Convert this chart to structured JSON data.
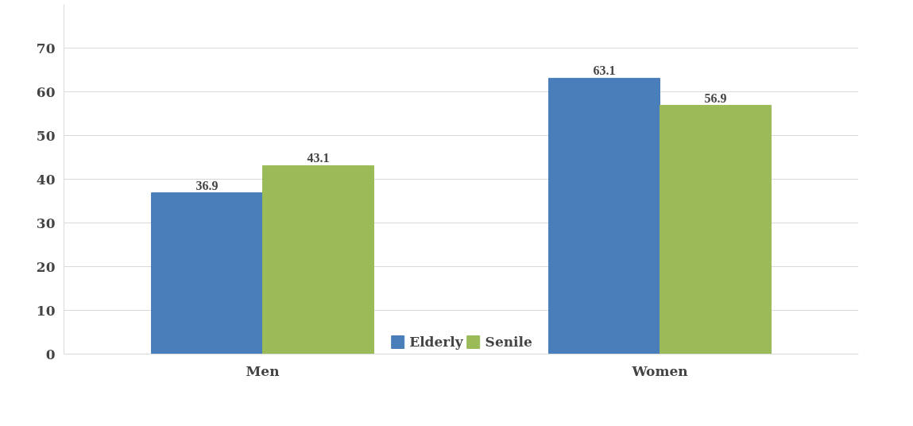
{
  "chart_data": {
    "type": "bar",
    "categories": [
      "Men",
      "Women"
    ],
    "series": [
      {
        "name": "Elderly",
        "color": "#4a7ebb",
        "values": [
          36.9,
          63.1
        ]
      },
      {
        "name": "Senile",
        "color": "#9bbb59",
        "values": [
          43.1,
          56.9
        ]
      }
    ],
    "ylim": [
      0,
      80
    ],
    "yticks": [
      0,
      10,
      20,
      30,
      40,
      50,
      60,
      70
    ],
    "grid": "y",
    "legend": "bottom",
    "data_labels": true
  }
}
